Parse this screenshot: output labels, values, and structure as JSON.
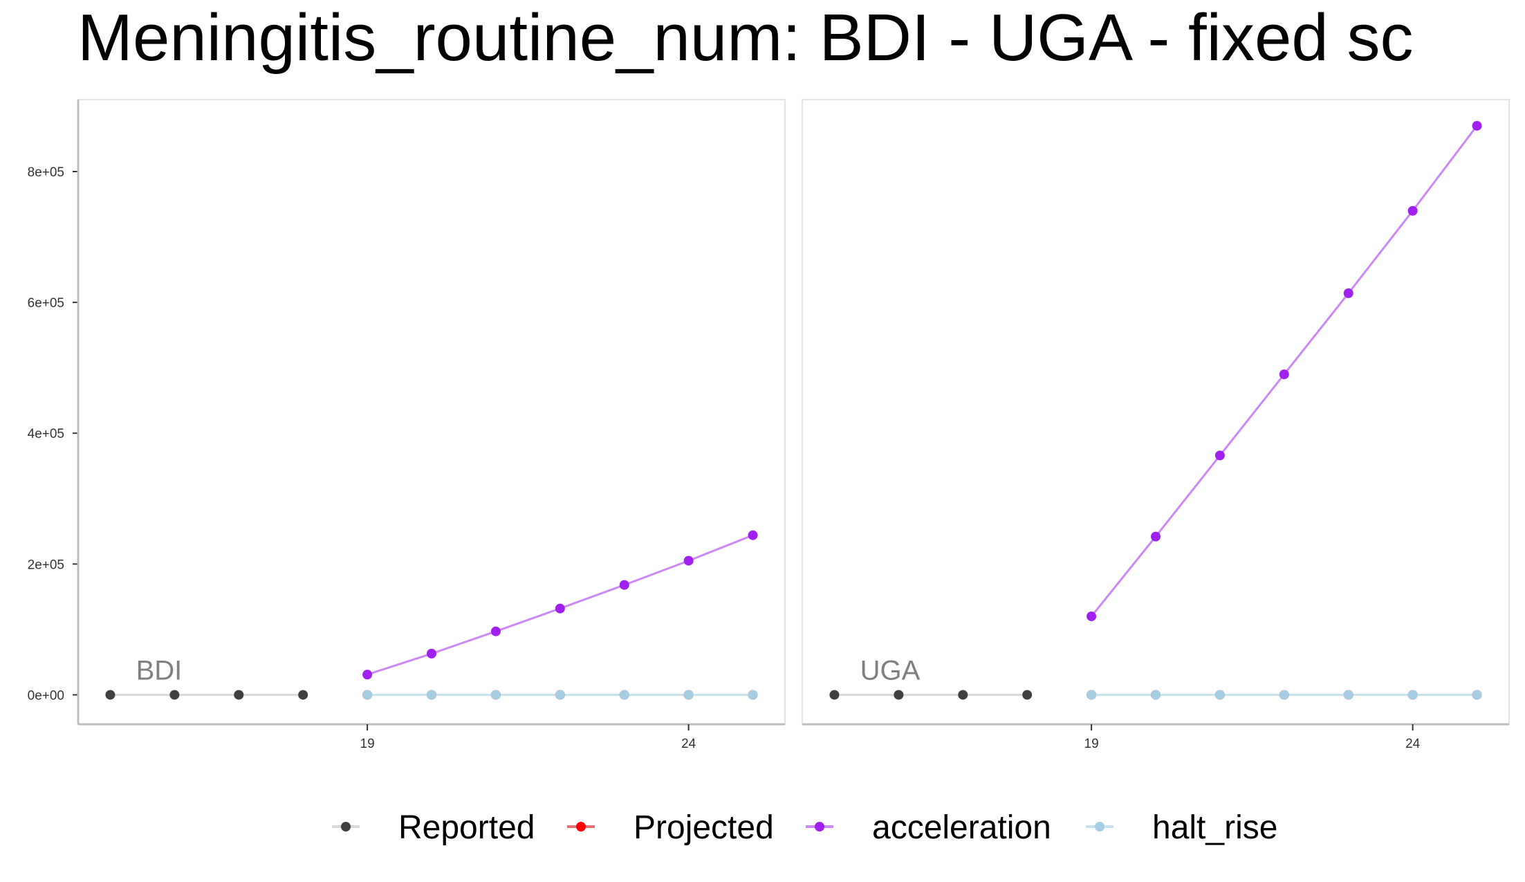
{
  "title": "Meningitis_routine_num: BDI - UGA - fixed sc",
  "colors": {
    "Reported_point": "#404040",
    "Reported_line": "#d9d9d9",
    "Projected_point": "#ff0000",
    "Projected_line": "#e57373",
    "acceleration_point": "#a020f0",
    "acceleration_line": "#cc88f5",
    "halt_rise_point": "#a6cee3",
    "halt_rise_line": "#c8e3f0"
  },
  "legend": {
    "position": "bottom",
    "items": [
      {
        "key": "Reported",
        "label": "Reported"
      },
      {
        "key": "Projected",
        "label": "Projected"
      },
      {
        "key": "acceleration",
        "label": "acceleration"
      },
      {
        "key": "halt_rise",
        "label": "halt_rise"
      }
    ]
  },
  "chart_data": {
    "type": "line",
    "title": "Meningitis_routine_num: BDI - UGA - fixed sc",
    "xlabel": "",
    "ylabel": "",
    "xlim": [
      14.5,
      25.5
    ],
    "ylim": [
      -45000,
      910000
    ],
    "x_ticks": [
      19,
      24
    ],
    "x_tick_labels": [
      "19",
      "24"
    ],
    "y_ticks": [
      0,
      200000,
      400000,
      600000,
      800000
    ],
    "y_tick_labels": [
      "0e+00",
      "2e+05",
      "4e+05",
      "6e+05",
      "8e+05"
    ],
    "grid": false,
    "panels": [
      {
        "label": "BDI",
        "series": [
          {
            "name": "Reported",
            "x": [
              15,
              16,
              17,
              18
            ],
            "values": [
              0,
              0,
              0,
              0
            ]
          },
          {
            "name": "Projected",
            "x": [
              19,
              20,
              21,
              22,
              23,
              24,
              25
            ],
            "values": [
              0,
              0,
              0,
              0,
              0,
              0,
              0
            ]
          },
          {
            "name": "acceleration",
            "x": [
              19,
              20,
              21,
              22,
              23,
              24,
              25
            ],
            "values": [
              31000,
              63000,
              97000,
              132000,
              168000,
              205000,
              244000
            ]
          },
          {
            "name": "halt_rise",
            "x": [
              19,
              20,
              21,
              22,
              23,
              24,
              25
            ],
            "values": [
              0,
              0,
              0,
              0,
              0,
              0,
              0
            ]
          }
        ]
      },
      {
        "label": "UGA",
        "series": [
          {
            "name": "Reported",
            "x": [
              15,
              16,
              17,
              18
            ],
            "values": [
              0,
              0,
              0,
              0
            ]
          },
          {
            "name": "Projected",
            "x": [
              19,
              20,
              21,
              22,
              23,
              24,
              25
            ],
            "values": [
              0,
              0,
              0,
              0,
              0,
              0,
              0
            ]
          },
          {
            "name": "acceleration",
            "x": [
              19,
              20,
              21,
              22,
              23,
              24,
              25
            ],
            "values": [
              120000,
              242000,
              366000,
              490000,
              614000,
              740000,
              870000
            ]
          },
          {
            "name": "halt_rise",
            "x": [
              19,
              20,
              21,
              22,
              23,
              24,
              25
            ],
            "values": [
              0,
              0,
              0,
              0,
              0,
              0,
              0
            ]
          }
        ]
      }
    ]
  }
}
